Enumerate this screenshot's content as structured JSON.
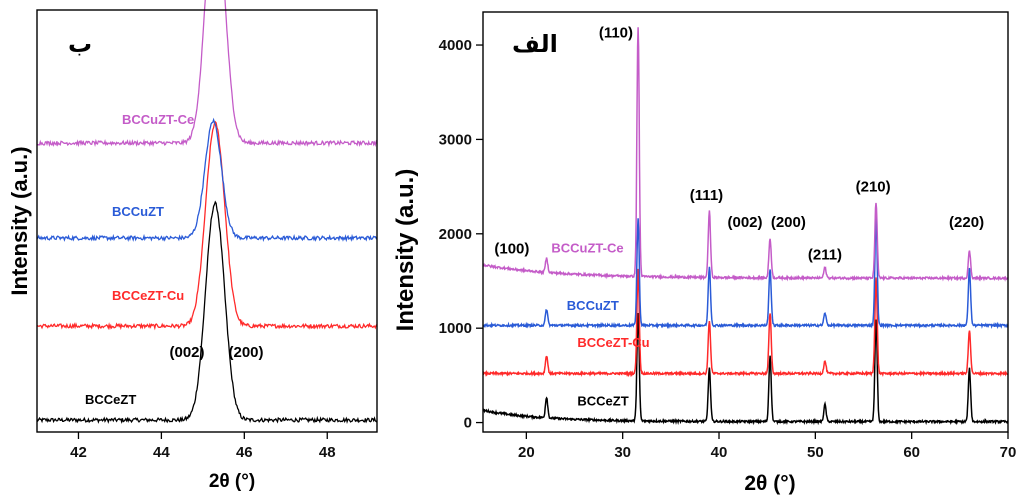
{
  "chart_data": [
    {
      "type": "line",
      "panel_label": "ب",
      "xlabel": "2θ (°)",
      "ylabel": "Intensity (a.u.)",
      "xlim": [
        41,
        49.2
      ],
      "x_ticks": [
        42,
        44,
        46,
        48
      ],
      "y_ticks": [],
      "peak_labels": [
        {
          "text": "(002)",
          "x": 44.9
        },
        {
          "text": "(200)",
          "x": 45.6
        }
      ],
      "series": [
        {
          "name": "BCCeZT",
          "color": "#000000",
          "peaks": [
            {
              "x": 45.2,
              "height": 0.66
            },
            {
              "x": 45.4,
              "height": 0.6
            }
          ]
        },
        {
          "name": "BCCeZT-Cu",
          "color": "#ff2a2a",
          "peaks": [
            {
              "x": 45.2,
              "height": 0.6
            },
            {
              "x": 45.4,
              "height": 0.58
            }
          ]
        },
        {
          "name": "BCCuZT",
          "color": "#2a5bd7",
          "peaks": [
            {
              "x": 45.25,
              "height": 0.6
            }
          ]
        },
        {
          "name": "BCCuZT-Ce",
          "color": "#c45cc8",
          "peaks": [
            {
              "x": 45.2,
              "height": 0.75
            },
            {
              "x": 45.4,
              "height": 0.7
            }
          ]
        }
      ]
    },
    {
      "type": "line",
      "panel_label": "الف",
      "xlabel": "2θ (°)",
      "ylabel": "Intensity (a.u.)",
      "xlim": [
        15.5,
        70
      ],
      "ylim": [
        -100,
        4350
      ],
      "x_ticks": [
        20,
        30,
        40,
        50,
        60,
        70
      ],
      "y_ticks": [
        0,
        1000,
        2000,
        3000,
        4000
      ],
      "peak_labels": [
        {
          "text": "(100)",
          "x": 18.5,
          "y": 1790
        },
        {
          "text": "(110)",
          "x": 29.3,
          "y": 4080
        },
        {
          "text": "(111)",
          "x": 38.7,
          "y": 2360
        },
        {
          "text": "(002)",
          "x": 42.7,
          "y": 2070
        },
        {
          "text": "(200)",
          "x": 47.2,
          "y": 2070
        },
        {
          "text": "(211)",
          "x": 51.0,
          "y": 1730
        },
        {
          "text": "(210)",
          "x": 56.0,
          "y": 2450
        },
        {
          "text": "(220)",
          "x": 65.7,
          "y": 2070
        }
      ],
      "series": [
        {
          "name": "BCCeZT",
          "color": "#000000",
          "baseline": 10,
          "label_x": 25.3,
          "label_y": 180,
          "peaks": [
            {
              "x": 22.1,
              "h": 220
            },
            {
              "x": 31.6,
              "h": 1140
            },
            {
              "x": 39.0,
              "h": 560
            },
            {
              "x": 45.3,
              "h": 700
            },
            {
              "x": 51.0,
              "h": 180
            },
            {
              "x": 56.3,
              "h": 1080
            },
            {
              "x": 66.0,
              "h": 560
            }
          ]
        },
        {
          "name": "BCCeZT-Cu",
          "color": "#ff2a2a",
          "baseline": 520,
          "label_x": 25.3,
          "label_y": 800,
          "peaks": [
            {
              "x": 22.1,
              "h": 190
            },
            {
              "x": 31.6,
              "h": 1100
            },
            {
              "x": 39.0,
              "h": 560
            },
            {
              "x": 45.3,
              "h": 640
            },
            {
              "x": 51.0,
              "h": 130
            },
            {
              "x": 56.3,
              "h": 1020
            },
            {
              "x": 66.0,
              "h": 460
            }
          ]
        },
        {
          "name": "BCCuZT",
          "color": "#2a5bd7",
          "baseline": 1030,
          "label_x": 24.2,
          "label_y": 1190,
          "peaks": [
            {
              "x": 22.1,
              "h": 170
            },
            {
              "x": 31.6,
              "h": 1130
            },
            {
              "x": 39.0,
              "h": 620
            },
            {
              "x": 45.3,
              "h": 600
            },
            {
              "x": 51.0,
              "h": 130
            },
            {
              "x": 56.3,
              "h": 1150
            },
            {
              "x": 66.0,
              "h": 600
            }
          ]
        },
        {
          "name": "BCCuZT-Ce",
          "color": "#c45cc8",
          "baseline": 1530,
          "label_x": 22.6,
          "label_y": 1800,
          "peaks": [
            {
              "x": 22.1,
              "h": 150
            },
            {
              "x": 31.6,
              "h": 2640
            },
            {
              "x": 39.0,
              "h": 700
            },
            {
              "x": 45.3,
              "h": 420
            },
            {
              "x": 51.0,
              "h": 110
            },
            {
              "x": 56.3,
              "h": 800
            },
            {
              "x": 66.0,
              "h": 290
            }
          ]
        }
      ]
    }
  ]
}
